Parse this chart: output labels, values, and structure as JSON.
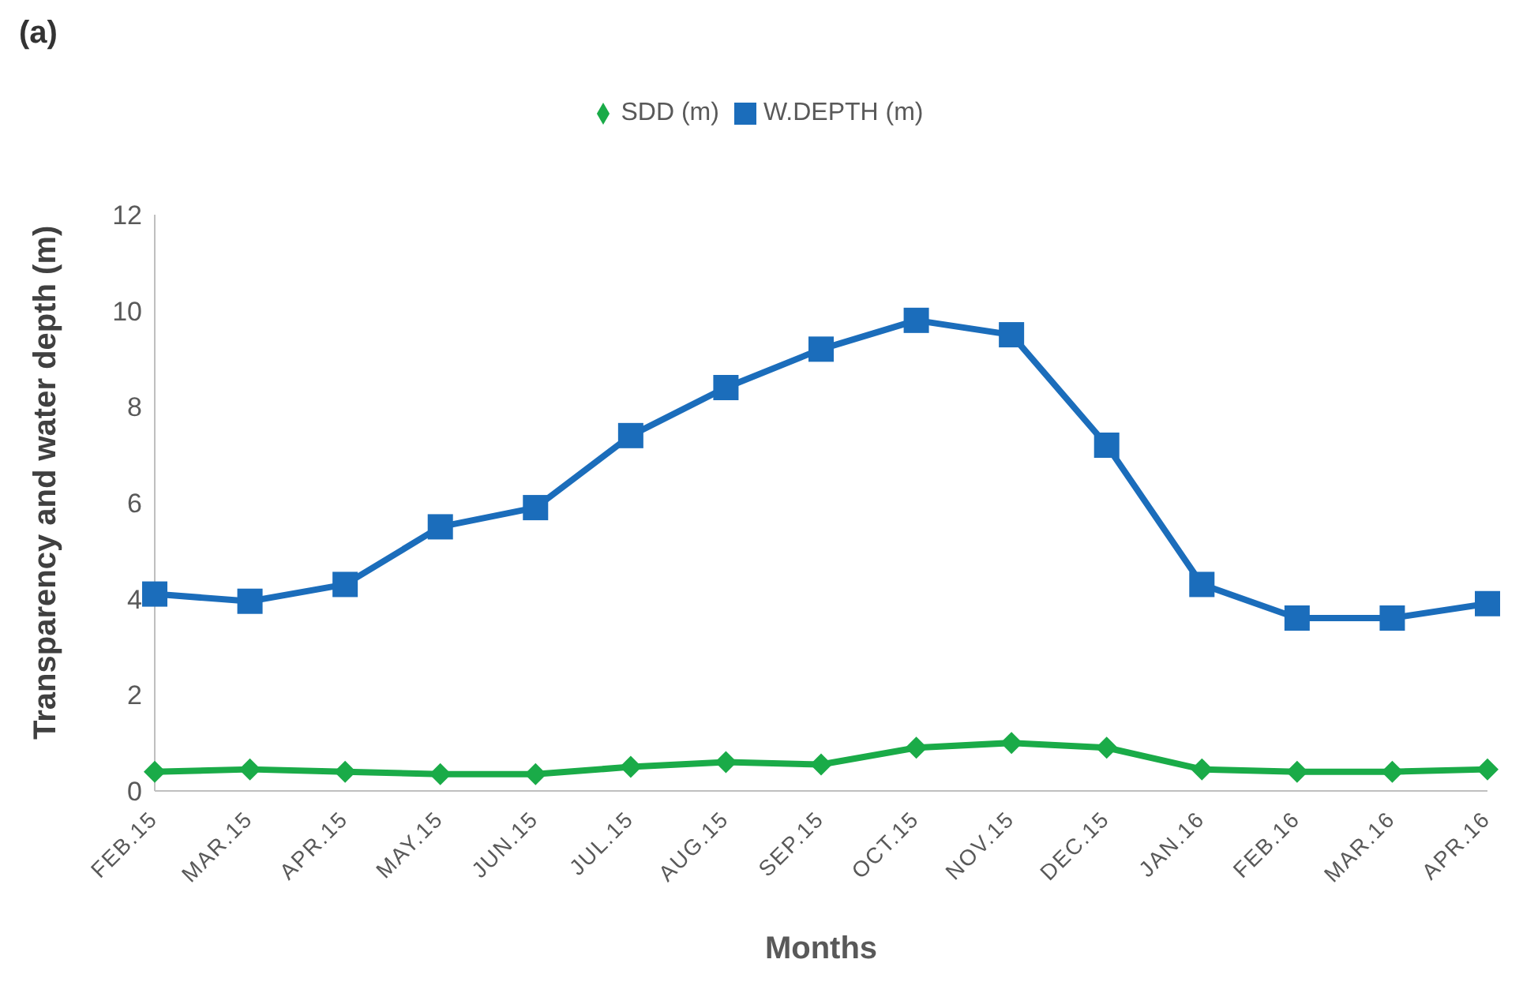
{
  "chart_data": {
    "type": "line",
    "title": "(a)",
    "xlabel": "Months",
    "ylabel": "Transparency and water depth (m)",
    "categories": [
      "FEB.15",
      "MAR.15",
      "APR.15",
      "MAY.15",
      "JUN.15",
      "JUL.15",
      "AUG.15",
      "SEP.15",
      "OCT.15",
      "NOV.15",
      "DEC.15",
      "JAN.16",
      "FEB.16",
      "MAR.16",
      "APR.16"
    ],
    "series": [
      {
        "name": "SDD (m)",
        "color": "#1aab48",
        "marker": "diamond",
        "values": [
          0.4,
          0.45,
          0.4,
          0.35,
          0.35,
          0.5,
          0.6,
          0.55,
          0.9,
          1.0,
          0.9,
          0.45,
          0.4,
          0.4,
          0.45
        ]
      },
      {
        "name": "W.DEPTH (m)",
        "color": "#1b6dbb",
        "marker": "square",
        "values": [
          4.1,
          3.95,
          4.3,
          5.5,
          5.9,
          7.4,
          8.4,
          9.2,
          9.8,
          9.5,
          7.2,
          4.3,
          3.6,
          3.6,
          3.9
        ]
      }
    ],
    "ylim": [
      0,
      12
    ],
    "yticks": [
      0,
      2,
      4,
      6,
      8,
      10,
      12
    ],
    "legend": "top"
  }
}
